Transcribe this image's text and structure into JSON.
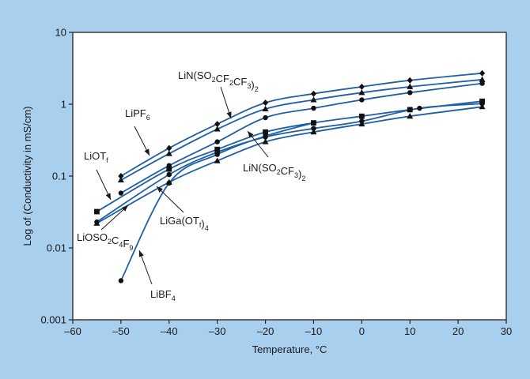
{
  "chart_data": {
    "type": "line",
    "title": "",
    "xlabel": "Temperature, °C",
    "ylabel": "Log of (Conductivity in mS/cm)",
    "y_scale": "log",
    "xlim": [
      -60,
      30
    ],
    "ylim": [
      0.001,
      10
    ],
    "x_ticks": [
      -60,
      -50,
      -40,
      -30,
      -20,
      -10,
      0,
      10,
      20,
      30
    ],
    "x_tick_labels": [
      "–60",
      "–50",
      "–40",
      "–30",
      "–20",
      "–10",
      "0",
      "10",
      "20",
      "30"
    ],
    "y_ticks": [
      0.001,
      0.01,
      0.1,
      1,
      10
    ],
    "y_tick_labels": [
      "0.001",
      "0.01",
      "0.1",
      "1",
      "10"
    ],
    "colors": {
      "background": "#a9cfee",
      "plot": "#ffffff",
      "line": "#1f5fa8",
      "marker": "#111111",
      "frame": "#222222"
    },
    "series": [
      {
        "name": "LiN(SO2CF2CF3)2",
        "label_main": [
          "LiN(SO",
          "CF",
          "CF",
          ")"
        ],
        "label_subs": [
          "2",
          "2",
          "3",
          "2"
        ],
        "marker": "diamond",
        "points": [
          [
            -50,
            0.1
          ],
          [
            -40,
            0.245
          ],
          [
            -30,
            0.53
          ],
          [
            -20,
            1.05
          ],
          [
            -10,
            1.4
          ],
          [
            0,
            1.75
          ],
          [
            10,
            2.15
          ],
          [
            25,
            2.7
          ]
        ]
      },
      {
        "name": "LiPF6",
        "label_main": [
          "LiPF"
        ],
        "label_subs": [
          "6"
        ],
        "marker": "triangle",
        "points": [
          [
            -50,
            0.088
          ],
          [
            -40,
            0.205
          ],
          [
            -30,
            0.45
          ],
          [
            -20,
            0.86
          ],
          [
            -10,
            1.15
          ],
          [
            0,
            1.45
          ],
          [
            10,
            1.75
          ],
          [
            25,
            2.2
          ]
        ]
      },
      {
        "name": "LiN(SO2CF3)2",
        "label_main": [
          "LiN(SO",
          "CF",
          ")"
        ],
        "label_subs": [
          "2",
          "3",
          "2"
        ],
        "marker": "circle",
        "points": [
          [
            -50,
            0.058
          ],
          [
            -40,
            0.14
          ],
          [
            -30,
            0.3
          ],
          [
            -20,
            0.65
          ],
          [
            -10,
            0.88
          ],
          [
            0,
            1.15
          ],
          [
            10,
            1.45
          ],
          [
            25,
            1.95
          ]
        ]
      },
      {
        "name": "LiOTf",
        "label_main": [
          "LiOT"
        ],
        "label_subs": [
          "f"
        ],
        "marker": "square",
        "points": [
          [
            -55,
            0.032
          ],
          [
            -40,
            0.125
          ],
          [
            -30,
            0.235
          ],
          [
            -20,
            0.41
          ],
          [
            -10,
            0.55
          ],
          [
            0,
            0.68
          ],
          [
            10,
            0.84
          ],
          [
            25,
            1.1
          ]
        ]
      },
      {
        "name": "LiGa(OTf)4",
        "label_main": [
          "LiGa(OT",
          ")"
        ],
        "label_subs": [
          "f",
          "4"
        ],
        "marker": "circle",
        "points": [
          [
            -55,
            0.023
          ],
          [
            -40,
            0.105
          ],
          [
            -30,
            0.215
          ],
          [
            -20,
            0.35
          ],
          [
            -10,
            0.46
          ],
          [
            0,
            0.58
          ],
          [
            12,
            0.88
          ],
          [
            25,
            1.02
          ]
        ]
      },
      {
        "name": "LiOSO2C4F9",
        "label_main": [
          "LiOSO",
          "C",
          "F"
        ],
        "label_subs": [
          "2",
          "4",
          "9"
        ],
        "marker": "triangle",
        "points": [
          [
            -55,
            0.022
          ],
          [
            -40,
            0.082
          ],
          [
            -30,
            0.163
          ],
          [
            -20,
            0.3
          ],
          [
            -10,
            0.41
          ],
          [
            0,
            0.53
          ],
          [
            10,
            0.68
          ],
          [
            25,
            0.92
          ]
        ]
      },
      {
        "name": "LiBF4",
        "label_main": [
          "LiBF"
        ],
        "label_subs": [
          "4"
        ],
        "marker": "circle",
        "points": [
          [
            -50,
            0.0035
          ],
          [
            -40,
            0.08
          ],
          [
            -30,
            0.2
          ],
          [
            -20,
            0.36
          ],
          [
            -10,
            0.55
          ]
        ]
      }
    ]
  }
}
